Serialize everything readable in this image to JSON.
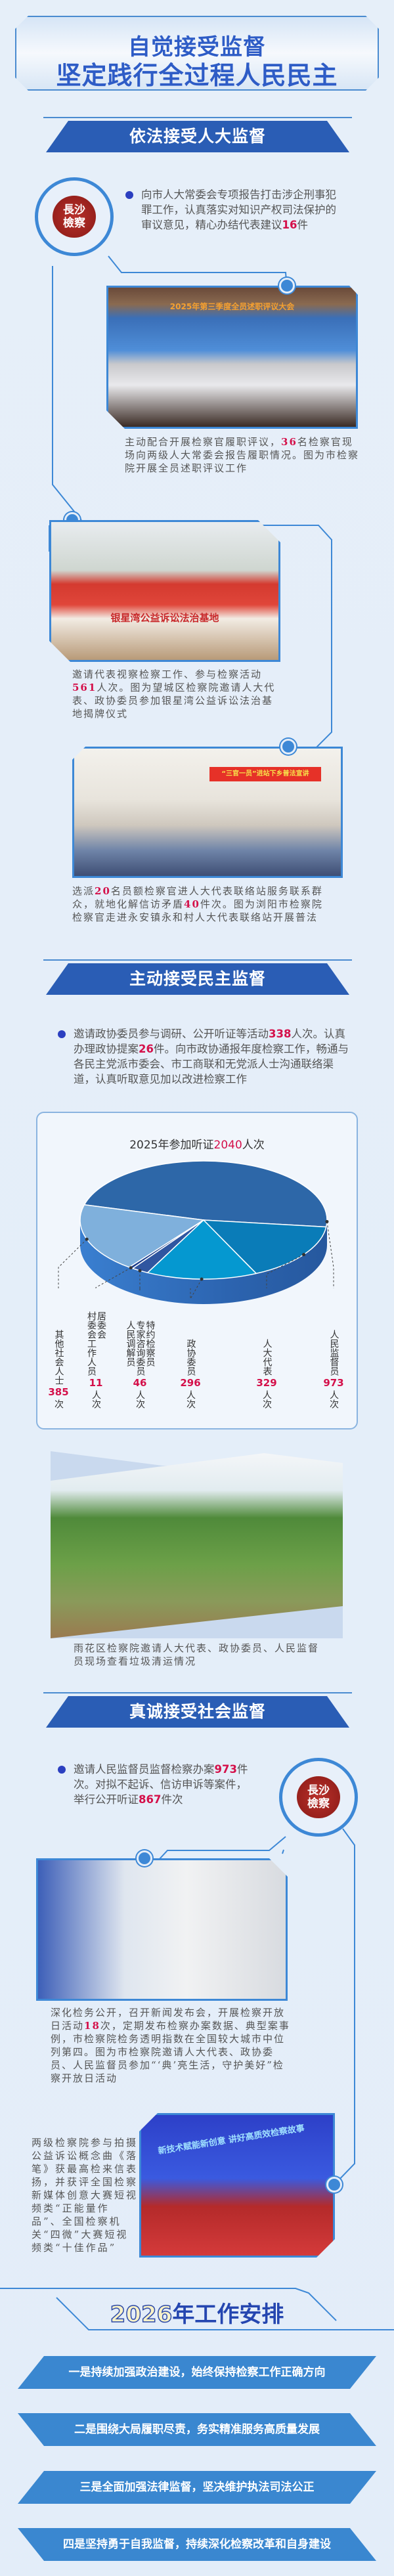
{
  "title": {
    "line1": "自觉接受监督",
    "line2": "坚定践行全过程人民民主"
  },
  "logo": {
    "text": "長沙 檢察"
  },
  "sections": [
    {
      "heading": "依法接受人大监督",
      "bullet": [
        {
          "t": "向市人大常委会专项报告打击涉企刑事犯罪工作，认真落实对知识产权司法保护的审议意见，精心办结代表建议"
        },
        {
          "t": "16",
          "hl": true
        },
        {
          "t": "件"
        }
      ],
      "photos": [
        {
          "banner": "2025年第三季度全员述职评议大会",
          "caption": [
            {
              "t": "主动配合开展检察官履职评议，"
            },
            {
              "t": "36",
              "hl": true
            },
            {
              "t": "名检察官现场向两级人大常委会报告履职情况。图为市检察院开展全员述职评议工作"
            }
          ]
        },
        {
          "banner": "银星湾公益诉讼法治基地",
          "caption": [
            {
              "t": "邀请代表视察检察工作、参与检察活动"
            },
            {
              "t": "561",
              "hl": true
            },
            {
              "t": "人次。图为望城区检察院邀请人大代表、政协委员参加银星湾公益诉讼法治基地揭牌仪式"
            }
          ]
        },
        {
          "banner": "“三官一员”进站下乡普法宣讲",
          "caption": [
            {
              "t": "选派"
            },
            {
              "t": "20",
              "hl": true
            },
            {
              "t": "名员额检察官进人大代表联络站服务联系群众，就地化解信访矛盾"
            },
            {
              "t": "40",
              "hl": true
            },
            {
              "t": "件次。图为浏阳市检察院检察官走进永安镇永和村人大代表联络站开展普法"
            }
          ]
        }
      ]
    },
    {
      "heading": "主动接受民主监督",
      "bullet": [
        {
          "t": "邀请政协委员参与调研、公开听证等活动"
        },
        {
          "t": "338",
          "hl": true
        },
        {
          "t": "人次。认真办理政协提案"
        },
        {
          "t": "26",
          "hl": true
        },
        {
          "t": "件。向市政协通报年度检察工作，畅通与各民主党派市委会、市工商联和无党派人士沟通联络渠道，认真听取意见加以改进检察工作"
        }
      ],
      "photo_caption": [
        {
          "t": "雨花区检察院邀请人大代表、政协委员、人民监督员现场查看垃圾清运情况"
        }
      ]
    },
    {
      "heading": "真诚接受社会监督",
      "bullet": [
        {
          "t": "邀请人民监督员监督检察办案"
        },
        {
          "t": "973",
          "hl": true
        },
        {
          "t": "件次。对拟不起诉、信访申诉等案件，举行公开听证"
        },
        {
          "t": "867",
          "hl": true
        },
        {
          "t": "件次"
        }
      ],
      "photos": [
        {
          "caption": [
            {
              "t": "深化检务公开，召开新闻发布会，开展检察开放日活动"
            },
            {
              "t": "18",
              "hl": true
            },
            {
              "t": "次，定期发布检察办案数据、典型案事例，市检察院检务透明指数在全国较大城市中位列第四。图为市检察院邀请人大代表、政协委员、人民监督员参加“‘典’亮生活，守护美好”检察开放日活动"
            }
          ]
        },
        {
          "banner": "新技术赋能新创意 讲好高质效检察故事",
          "caption": [
            {
              "t": "两级检察院参与拍摄公益诉讼概念曲《落笔》获最高检来信表扬，并获评全国检察新媒体创意大赛短视频类“正能量作品”、全国检察机关“四微”大赛短视频类“十佳作品”"
            }
          ]
        }
      ]
    }
  ],
  "chart_data": {
    "type": "pie",
    "title_pre": "2025年参加听证",
    "title_total": "2040",
    "title_unit": "人次",
    "categories": [
      "人民监督员",
      "人大代表",
      "政协委员",
      "特约检察员\n专家咨询委员\n人民调解员",
      "居委会\n村委会工作人员",
      "其他社会人士"
    ],
    "values": [
      973,
      329,
      296,
      46,
      11,
      385
    ],
    "units": [
      "人次",
      "人次",
      "人次",
      "人次",
      "人次",
      "次"
    ],
    "colors": [
      "#2d67a8",
      "#0a7cb8",
      "#0598d0",
      "#3056a0",
      "#1a3d8c",
      "#7fb0dc"
    ]
  },
  "plan": {
    "heading_year": "2026",
    "heading_rest": "年工作安排",
    "items": [
      "一是持续加强政治建设，始终保持检察工作正确方向",
      "二是围绕大局履职尽责，务实精准服务高质量发展",
      "三是全面加强法律监督，坚决维护执法司法公正",
      "四是坚持勇于自我监督，持续深化检察改革和自身建设"
    ]
  }
}
